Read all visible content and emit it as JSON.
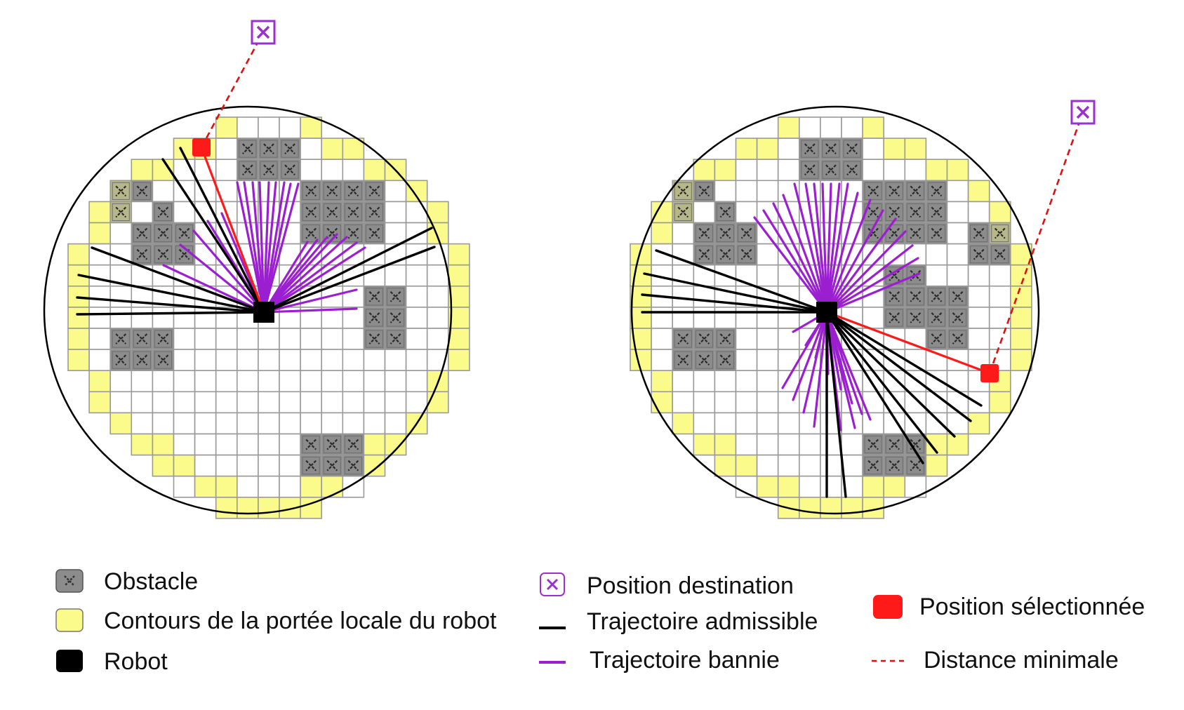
{
  "legend": {
    "obstacle": "Obstacle",
    "contour": "Contours de la portée locale du robot",
    "robot": "Robot",
    "destination": "Position destination",
    "admissible": "Trajectoire admissible",
    "banned": "Trajectoire bannie",
    "selected": "Position sélectionnée",
    "min_distance": "Distance minimale"
  },
  "colors": {
    "obstacle": "#8c8c8c",
    "obstacle_faded": "#b6b88a",
    "contour": "#fbfb8b",
    "robot": "#000000",
    "destination": "#9b30d0",
    "admissible": "#000000",
    "banned": "#9b1fd1",
    "selected": "#ff1a1a",
    "min_distance": "#e01010",
    "grid": "#9a9a9a"
  },
  "icons": {
    "obstacle": "cross-cell-icon",
    "destination": "boxed-cross-icon",
    "robot": "filled-square-icon"
  }
}
